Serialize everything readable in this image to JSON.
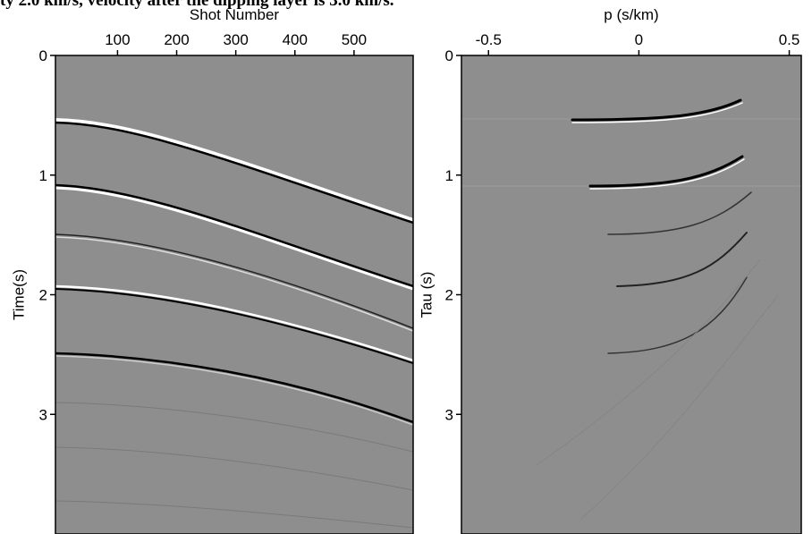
{
  "caption": "ty 2.0 km/s, velocity after the dipping layer is 3.0 km/s.",
  "chart_data": [
    {
      "type": "image",
      "xlabel": "Shot Number",
      "ylabel": "Time(s)",
      "xlim": [
        -5,
        600
      ],
      "xticks": [
        100,
        200,
        300,
        400,
        500
      ],
      "ylim": [
        0,
        4
      ],
      "yticks": [
        0,
        1,
        2,
        3
      ],
      "y_inverted": true,
      "x_axis_position": "top"
    },
    {
      "type": "image",
      "xlabel": "p (s/km)",
      "ylabel": "Tau (s)",
      "xlim": [
        -0.59,
        0.54
      ],
      "xticks": [
        -0.5,
        0,
        0.5
      ],
      "ylim": [
        0,
        4
      ],
      "yticks": [
        0,
        1,
        2,
        3
      ],
      "y_inverted": true,
      "x_axis_position": "top"
    }
  ]
}
